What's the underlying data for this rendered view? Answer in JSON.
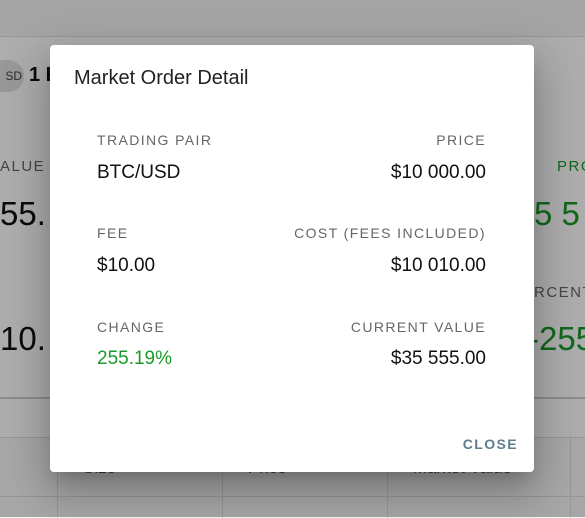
{
  "background": {
    "chip_label": "SD",
    "amount_fragment": "1 E",
    "value_label_fragment": "ALUE",
    "value_big_fragment": "55.",
    "second_big_fragment": "10.",
    "profit_label_fragment": "PRO",
    "profit_value_fragment": "5 5",
    "percent_label_fragment": "RCENT",
    "percent_value_fragment": "-255",
    "table_headers": [
      "Size",
      "Price",
      "Market Value"
    ]
  },
  "dialog": {
    "title": "Market Order Detail",
    "fields": {
      "trading_pair": {
        "label": "TRADING PAIR",
        "value": "BTC/USD"
      },
      "price": {
        "label": "PRICE",
        "value": "$10 000.00"
      },
      "fee": {
        "label": "FEE",
        "value": "$10.00"
      },
      "cost": {
        "label": "COST (FEES INCLUDED)",
        "value": "$10 010.00"
      },
      "change": {
        "label": "CHANGE",
        "value": "255.19%"
      },
      "current_value": {
        "label": "CURRENT VALUE",
        "value": "$35 555.00"
      }
    },
    "close_label": "CLOSE"
  },
  "colors": {
    "positive": "#1a9a2a",
    "close_button": "#5f7d8c",
    "overlay": "rgba(0,0,0,0.32)"
  }
}
